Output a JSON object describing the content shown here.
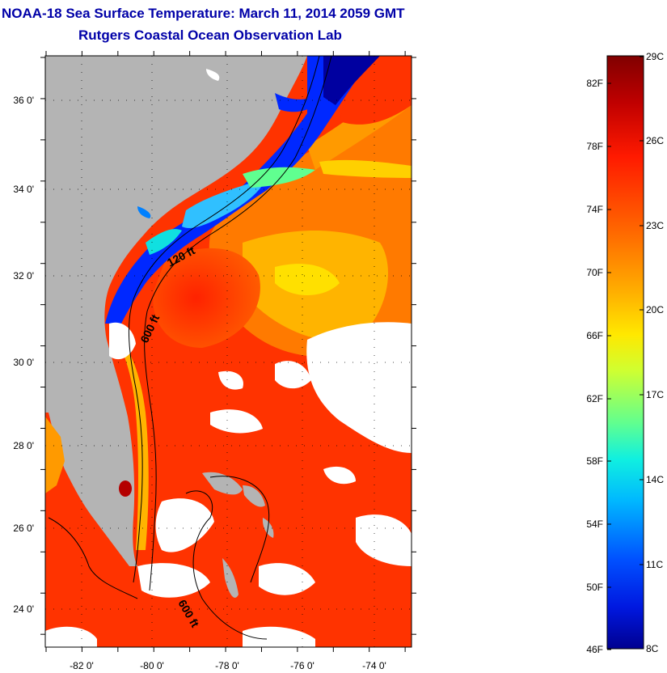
{
  "title": "NOAA-18 Sea Surface Temperature:  March 11, 2014 2059 GMT",
  "subtitle": "Rutgers Coastal Ocean Observation Lab",
  "map": {
    "lat_ticks": [
      "36 0'",
      "34 0'",
      "32 0'",
      "30 0'",
      "28 0'",
      "26 0'",
      "24 0'"
    ],
    "lon_ticks": [
      "-82 0'",
      "-80 0'",
      "-78 0'",
      "-76 0'",
      "-74 0'"
    ],
    "contour_labels": [
      "120 ft",
      "600 ft",
      "600 ft"
    ],
    "land_color": "#b4b4b4",
    "cloud_color": "#ffffff"
  },
  "colorbar": {
    "fahrenheit_labels": [
      "82F",
      "78F",
      "74F",
      "70F",
      "66F",
      "62F",
      "58F",
      "54F",
      "50F",
      "46F"
    ],
    "celsius_labels": [
      "29C",
      "26C",
      "23C",
      "20C",
      "17C",
      "14C",
      "11C",
      "8C"
    ],
    "colors_top_to_bottom": [
      "#800000",
      "#c80000",
      "#ff2800",
      "#ff7800",
      "#ffc800",
      "#f0ff10",
      "#a0ff60",
      "#40ffc0",
      "#00d0ff",
      "#0080ff",
      "#0028ff",
      "#0000b0"
    ]
  }
}
